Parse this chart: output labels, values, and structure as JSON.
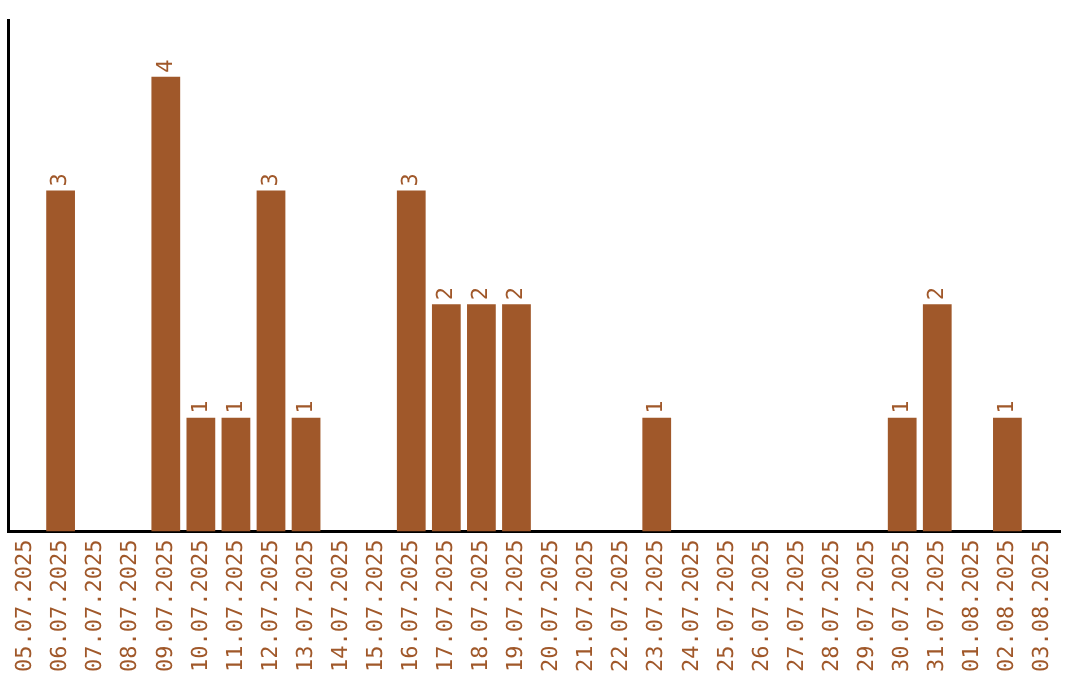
{
  "chart_data": {
    "type": "bar",
    "categories": [
      "05.07.2025",
      "06.07.2025",
      "07.07.2025",
      "08.07.2025",
      "09.07.2025",
      "10.07.2025",
      "11.07.2025",
      "12.07.2025",
      "13.07.2025",
      "14.07.2025",
      "15.07.2025",
      "16.07.2025",
      "17.07.2025",
      "18.07.2025",
      "19.07.2025",
      "20.07.2025",
      "21.07.2025",
      "22.07.2025",
      "23.07.2025",
      "24.07.2025",
      "25.07.2025",
      "26.07.2025",
      "27.07.2025",
      "28.07.2025",
      "29.07.2025",
      "30.07.2025",
      "31.07.2025",
      "01.08.2025",
      "02.08.2025",
      "03.08.2025"
    ],
    "values": [
      0,
      3,
      0,
      0,
      4,
      1,
      1,
      3,
      1,
      0,
      0,
      3,
      2,
      2,
      2,
      0,
      0,
      0,
      1,
      0,
      0,
      0,
      0,
      0,
      0,
      1,
      2,
      0,
      1,
      0
    ],
    "value_labels": [
      null,
      "3",
      null,
      null,
      "4",
      "1",
      "1",
      "3",
      "1",
      null,
      null,
      "3",
      "2",
      "2",
      "2",
      null,
      null,
      null,
      "1",
      null,
      null,
      null,
      null,
      null,
      null,
      "1",
      "2",
      null,
      "1",
      null
    ],
    "color": "#a0582a",
    "grid": false,
    "legend": false,
    "tick_labels": "x"
  }
}
